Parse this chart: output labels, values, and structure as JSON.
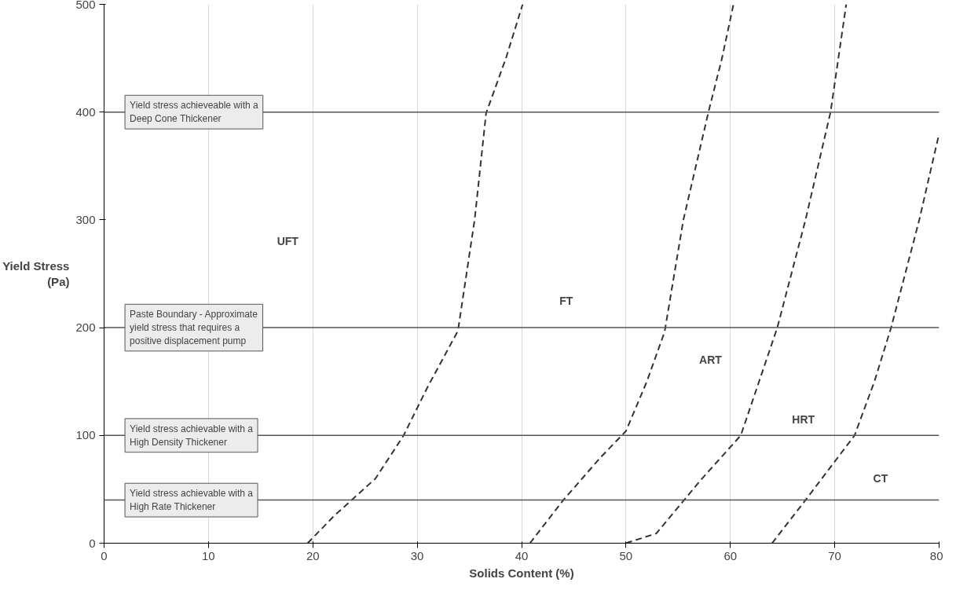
{
  "chart_data": {
    "type": "line",
    "xlabel": "Solids Content (%)",
    "ylabel": "Yield Stress (Pa)",
    "xlim": [
      0,
      80
    ],
    "ylim": [
      0,
      500
    ],
    "xticks": [
      0,
      10,
      20,
      30,
      40,
      50,
      60,
      70,
      80
    ],
    "yticks": [
      0,
      100,
      200,
      300,
      400,
      500
    ],
    "grid": "x",
    "line_style": "dashed",
    "marker": "none",
    "series": [
      {
        "color": "#333333",
        "x": [
          19.5,
          22,
          26,
          28.7,
          31,
          33.9,
          35.5,
          36.6,
          38.5,
          40.1
        ],
        "values": [
          0,
          25,
          60,
          100,
          145,
          197,
          300,
          399,
          450,
          500
        ]
      },
      {
        "color": "#333333",
        "x": [
          40.8,
          44,
          47.6,
          50,
          52,
          53.7,
          55.5,
          57.9,
          59.2,
          60.3
        ],
        "values": [
          0,
          40,
          80,
          104,
          150,
          196,
          300,
          400,
          450,
          500
        ]
      },
      {
        "color": "#333333",
        "x": [
          50,
          52.9,
          57.2,
          61,
          64.5,
          67.2,
          69.6,
          71.1
        ],
        "values": [
          0,
          9,
          59,
          100,
          200,
          300,
          400,
          500
        ]
      },
      {
        "color": "#333333",
        "x": [
          64,
          67.2,
          71.9,
          73.8,
          75.4,
          78.1,
          80
        ],
        "values": [
          0,
          40,
          100,
          150,
          200,
          300,
          380
        ]
      }
    ],
    "ref_lines": [
      {
        "axis": "y",
        "value": 400,
        "label": "Yield stress achieveable with a Deep Cone Thickener"
      },
      {
        "axis": "y",
        "value": 200,
        "label": "Paste Boundary - Approximate yield stress that requires a positive displacement pump"
      },
      {
        "axis": "y",
        "value": 100,
        "label": "Yield stress achievable with a High Density Thickener"
      },
      {
        "axis": "y",
        "value": 40,
        "label": "Yield stress achievable with a High Rate Thickener"
      }
    ],
    "annotations": [
      "UFT",
      "FT",
      "ART",
      "HRT",
      "CT"
    ]
  }
}
